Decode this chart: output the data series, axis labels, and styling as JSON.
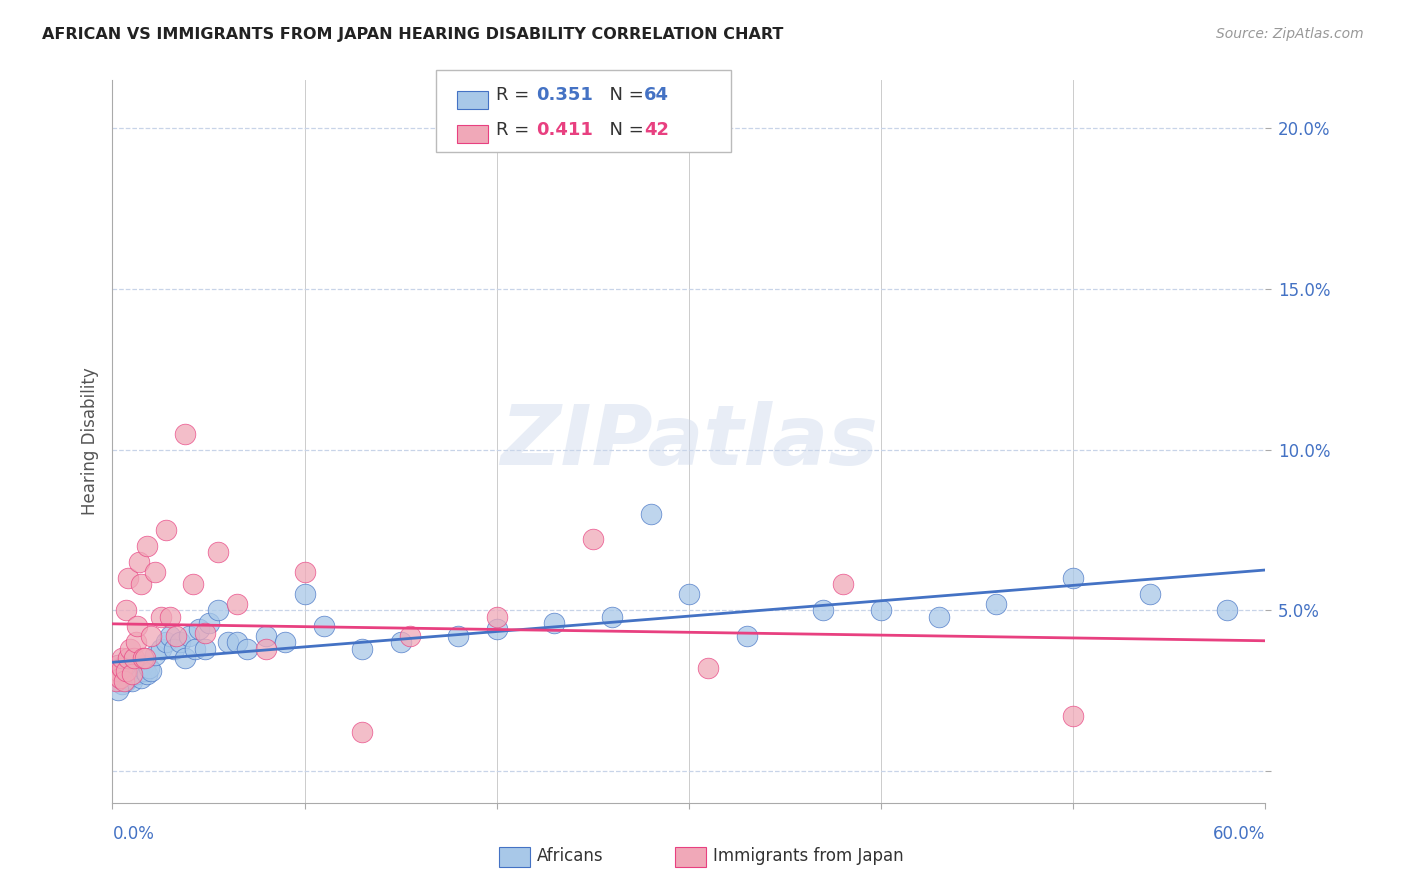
{
  "title": "AFRICAN VS IMMIGRANTS FROM JAPAN HEARING DISABILITY CORRELATION CHART",
  "source": "Source: ZipAtlas.com",
  "ylabel": "Hearing Disability",
  "blue_color": "#a8c8e8",
  "pink_color": "#f0a8b8",
  "blue_line_color": "#4472c4",
  "pink_line_color": "#e84080",
  "x_min": 0.0,
  "x_max": 0.6,
  "y_min": -0.01,
  "y_max": 0.215,
  "watermark": "ZIPatlas",
  "background_color": "#ffffff",
  "grid_color": "#c8d4e8",
  "axis_label_color": "#4472c4",
  "title_color": "#222222",
  "africans_x": [
    0.001,
    0.002,
    0.003,
    0.003,
    0.004,
    0.004,
    0.005,
    0.005,
    0.006,
    0.006,
    0.007,
    0.007,
    0.008,
    0.008,
    0.009,
    0.009,
    0.01,
    0.011,
    0.012,
    0.013,
    0.014,
    0.015,
    0.016,
    0.017,
    0.018,
    0.019,
    0.02,
    0.022,
    0.025,
    0.028,
    0.03,
    0.032,
    0.035,
    0.038,
    0.04,
    0.043,
    0.045,
    0.048,
    0.05,
    0.055,
    0.06,
    0.065,
    0.07,
    0.08,
    0.09,
    0.1,
    0.11,
    0.13,
    0.15,
    0.18,
    0.2,
    0.23,
    0.26,
    0.3,
    0.33,
    0.37,
    0.4,
    0.43,
    0.46,
    0.5,
    0.54,
    0.58,
    0.003,
    0.28
  ],
  "africans_y": [
    0.03,
    0.031,
    0.028,
    0.033,
    0.029,
    0.032,
    0.027,
    0.031,
    0.03,
    0.033,
    0.028,
    0.032,
    0.031,
    0.029,
    0.034,
    0.03,
    0.028,
    0.033,
    0.031,
    0.03,
    0.032,
    0.029,
    0.033,
    0.031,
    0.03,
    0.032,
    0.031,
    0.036,
    0.038,
    0.04,
    0.042,
    0.038,
    0.04,
    0.035,
    0.042,
    0.038,
    0.044,
    0.038,
    0.046,
    0.05,
    0.04,
    0.04,
    0.038,
    0.042,
    0.04,
    0.055,
    0.045,
    0.038,
    0.04,
    0.042,
    0.044,
    0.046,
    0.048,
    0.055,
    0.042,
    0.05,
    0.05,
    0.048,
    0.052,
    0.06,
    0.055,
    0.05,
    0.025,
    0.08
  ],
  "japan_x": [
    0.001,
    0.002,
    0.003,
    0.003,
    0.004,
    0.005,
    0.005,
    0.006,
    0.007,
    0.007,
    0.008,
    0.008,
    0.009,
    0.01,
    0.011,
    0.012,
    0.013,
    0.014,
    0.015,
    0.016,
    0.017,
    0.018,
    0.02,
    0.022,
    0.025,
    0.028,
    0.03,
    0.033,
    0.038,
    0.042,
    0.048,
    0.055,
    0.065,
    0.08,
    0.1,
    0.13,
    0.155,
    0.2,
    0.25,
    0.31,
    0.38,
    0.5
  ],
  "japan_y": [
    0.03,
    0.028,
    0.031,
    0.033,
    0.029,
    0.032,
    0.035,
    0.028,
    0.031,
    0.05,
    0.035,
    0.06,
    0.038,
    0.03,
    0.035,
    0.04,
    0.045,
    0.065,
    0.058,
    0.035,
    0.035,
    0.07,
    0.042,
    0.062,
    0.048,
    0.075,
    0.048,
    0.042,
    0.105,
    0.058,
    0.043,
    0.068,
    0.052,
    0.038,
    0.062,
    0.012,
    0.042,
    0.048,
    0.072,
    0.032,
    0.058,
    0.017
  ],
  "yticks": [
    0.0,
    0.05,
    0.1,
    0.15,
    0.2
  ],
  "ytick_labels": [
    "",
    "5.0%",
    "10.0%",
    "15.0%",
    "20.0%"
  ],
  "xtick_positions": [
    0.0,
    0.1,
    0.2,
    0.3,
    0.4,
    0.5,
    0.6
  ]
}
